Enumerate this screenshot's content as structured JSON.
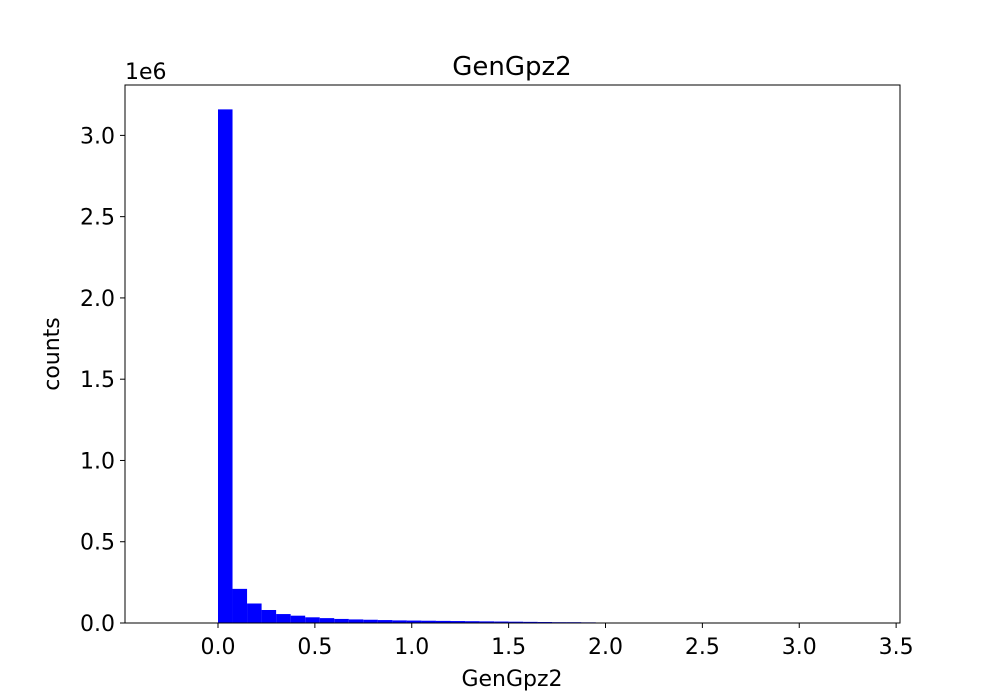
{
  "chart_data": {
    "type": "bar",
    "title": "GenGpz2",
    "xlabel": "GenGpz2",
    "ylabel": "counts",
    "y_offset_label": "1e6",
    "y_scale": 1000000,
    "xlim": [
      -0.48,
      3.52
    ],
    "ylim": [
      0,
      3.31
    ],
    "x_ticks": [
      0.0,
      0.5,
      1.0,
      1.5,
      2.0,
      2.5,
      3.0,
      3.5
    ],
    "x_tick_labels": [
      "0.0",
      "0.5",
      "1.0",
      "1.5",
      "2.0",
      "2.5",
      "3.0",
      "3.5"
    ],
    "y_ticks": [
      0.0,
      0.5,
      1.0,
      1.5,
      2.0,
      2.5,
      3.0
    ],
    "y_tick_labels": [
      "0.0",
      "0.5",
      "1.0",
      "1.5",
      "2.0",
      "2.5",
      "3.0"
    ],
    "bin_edges": [
      0.0,
      0.075,
      0.15,
      0.225,
      0.3,
      0.375,
      0.45,
      0.525,
      0.6,
      0.675,
      0.75,
      0.825,
      0.9,
      0.975,
      1.05,
      1.125,
      1.2,
      1.275,
      1.35,
      1.425,
      1.5,
      1.575,
      1.65,
      1.725,
      1.8,
      1.875,
      1.95,
      2.025
    ],
    "values": [
      3.16,
      0.21,
      0.12,
      0.08,
      0.055,
      0.045,
      0.035,
      0.03,
      0.025,
      0.022,
      0.02,
      0.018,
      0.016,
      0.015,
      0.014,
      0.013,
      0.012,
      0.011,
      0.01,
      0.009,
      0.008,
      0.007,
      0.006,
      0.005,
      0.005,
      0.004,
      0.003
    ],
    "bar_color": "#0000ff",
    "grid": false,
    "legend": "none"
  }
}
